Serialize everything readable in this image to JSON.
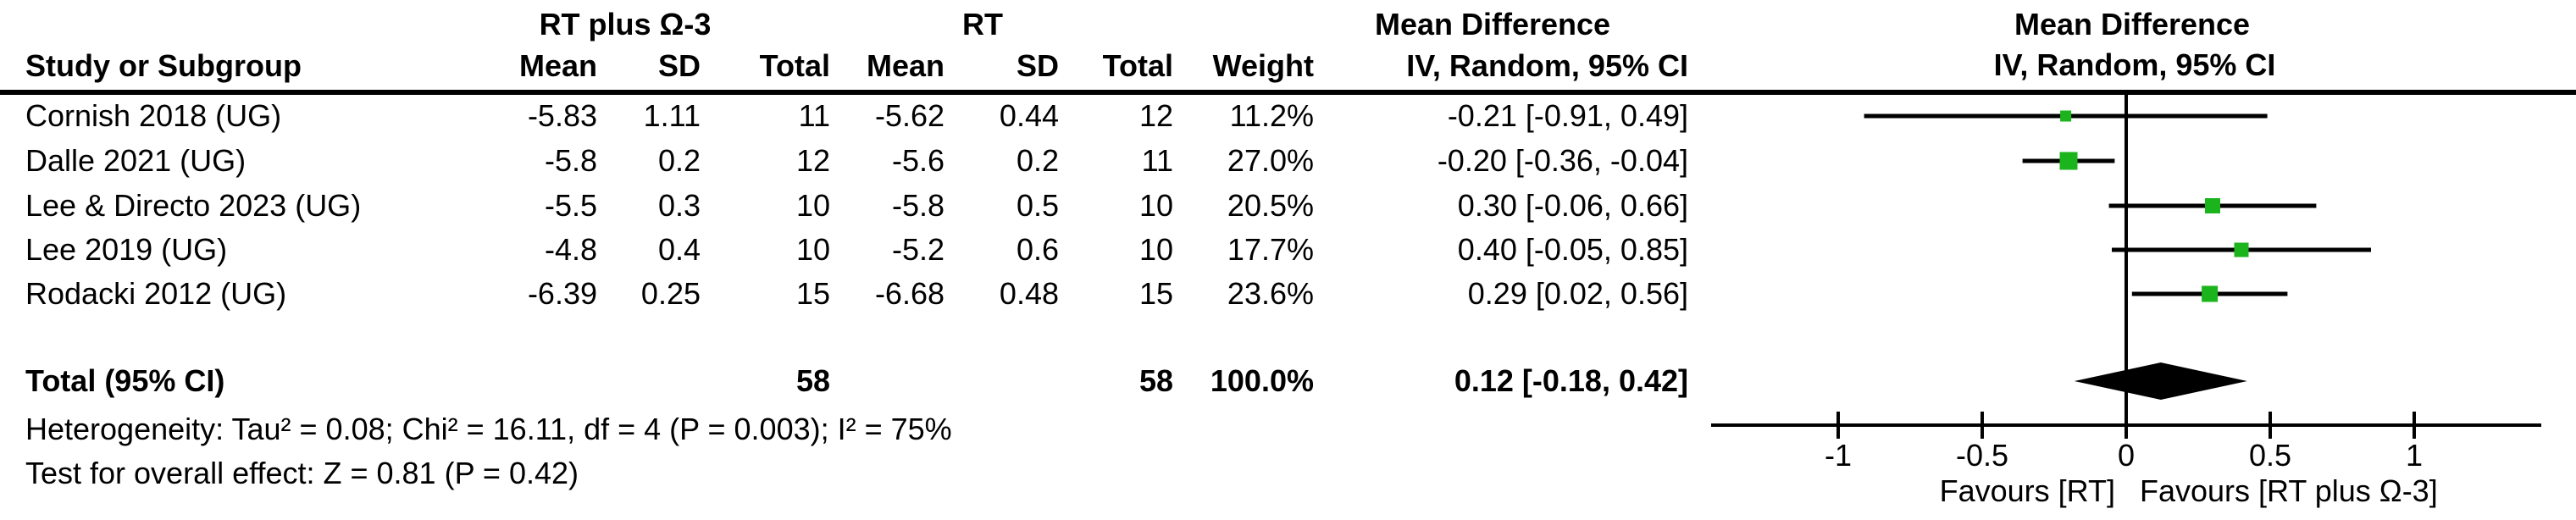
{
  "headers": {
    "group1": "RT plus Ω-3",
    "group2": "RT",
    "effect_line1": "Mean Difference",
    "effect_line2": "IV, Random, 95% CI",
    "study": "Study or Subgroup",
    "mean": "Mean",
    "sd": "SD",
    "total": "Total",
    "weight": "Weight"
  },
  "rows": [
    {
      "study": "Cornish 2018 (UG)",
      "mean1": "-5.83",
      "sd1": "1.11",
      "total1": "11",
      "mean2": "-5.62",
      "sd2": "0.44",
      "total2": "12",
      "weight": "11.2%",
      "ci": "-0.21 [-0.91, 0.49]"
    },
    {
      "study": "Dalle 2021 (UG)",
      "mean1": "-5.8",
      "sd1": "0.2",
      "total1": "12",
      "mean2": "-5.6",
      "sd2": "0.2",
      "total2": "11",
      "weight": "27.0%",
      "ci": "-0.20 [-0.36, -0.04]"
    },
    {
      "study": "Lee & Directo 2023 (UG)",
      "mean1": "-5.5",
      "sd1": "0.3",
      "total1": "10",
      "mean2": "-5.8",
      "sd2": "0.5",
      "total2": "10",
      "weight": "20.5%",
      "ci": "0.30 [-0.06, 0.66]"
    },
    {
      "study": "Lee 2019 (UG)",
      "mean1": "-4.8",
      "sd1": "0.4",
      "total1": "10",
      "mean2": "-5.2",
      "sd2": "0.6",
      "total2": "10",
      "weight": "17.7%",
      "ci": "0.40 [-0.05, 0.85]"
    },
    {
      "study": "Rodacki 2012 (UG)",
      "mean1": "-6.39",
      "sd1": "0.25",
      "total1": "15",
      "mean2": "-6.68",
      "sd2": "0.48",
      "total2": "15",
      "weight": "23.6%",
      "ci": "0.29 [0.02, 0.56]"
    }
  ],
  "total_row": {
    "label": "Total (95% CI)",
    "total1": "58",
    "total2": "58",
    "weight": "100.0%",
    "ci": "0.12 [-0.18, 0.42]"
  },
  "footer": {
    "heterogeneity": "Heterogeneity: Tau² = 0.08; Chi² = 16.11, df = 4 (P = 0.003); I² = 75%",
    "overall_effect": "Test for overall effect: Z = 0.81 (P = 0.42)"
  },
  "chart_data": {
    "type": "forest",
    "effect_measure": "Mean Difference",
    "model": "IV, Random, 95% CI",
    "xlim": [
      -1.44,
      1.44
    ],
    "axis_ticks": [
      {
        "v": -1,
        "label": "-1"
      },
      {
        "v": -0.5,
        "label": "-0.5"
      },
      {
        "v": 0,
        "label": "0"
      },
      {
        "v": 0.5,
        "label": "0.5"
      },
      {
        "v": 1,
        "label": "1"
      }
    ],
    "favours_left": "Favours [RT]",
    "favours_right": "Favours [RT plus Ω-3]",
    "marker_color": "#1cb41c",
    "line_color": "#000000",
    "studies": [
      {
        "name": "Cornish 2018 (UG)",
        "md": -0.21,
        "ci_low": -0.91,
        "ci_high": 0.49,
        "weight_pct": 11.2
      },
      {
        "name": "Dalle 2021 (UG)",
        "md": -0.2,
        "ci_low": -0.36,
        "ci_high": -0.04,
        "weight_pct": 27.0
      },
      {
        "name": "Lee & Directo 2023 (UG)",
        "md": 0.3,
        "ci_low": -0.06,
        "ci_high": 0.66,
        "weight_pct": 20.5
      },
      {
        "name": "Lee 2019 (UG)",
        "md": 0.4,
        "ci_low": -0.05,
        "ci_high": 0.85,
        "weight_pct": 17.7
      },
      {
        "name": "Rodacki 2012 (UG)",
        "md": 0.29,
        "ci_low": 0.02,
        "ci_high": 0.56,
        "weight_pct": 23.6
      }
    ],
    "overall": {
      "md": 0.12,
      "ci_low": -0.18,
      "ci_high": 0.42,
      "total1": 58,
      "total2": 58,
      "weight_pct": 100.0
    }
  }
}
